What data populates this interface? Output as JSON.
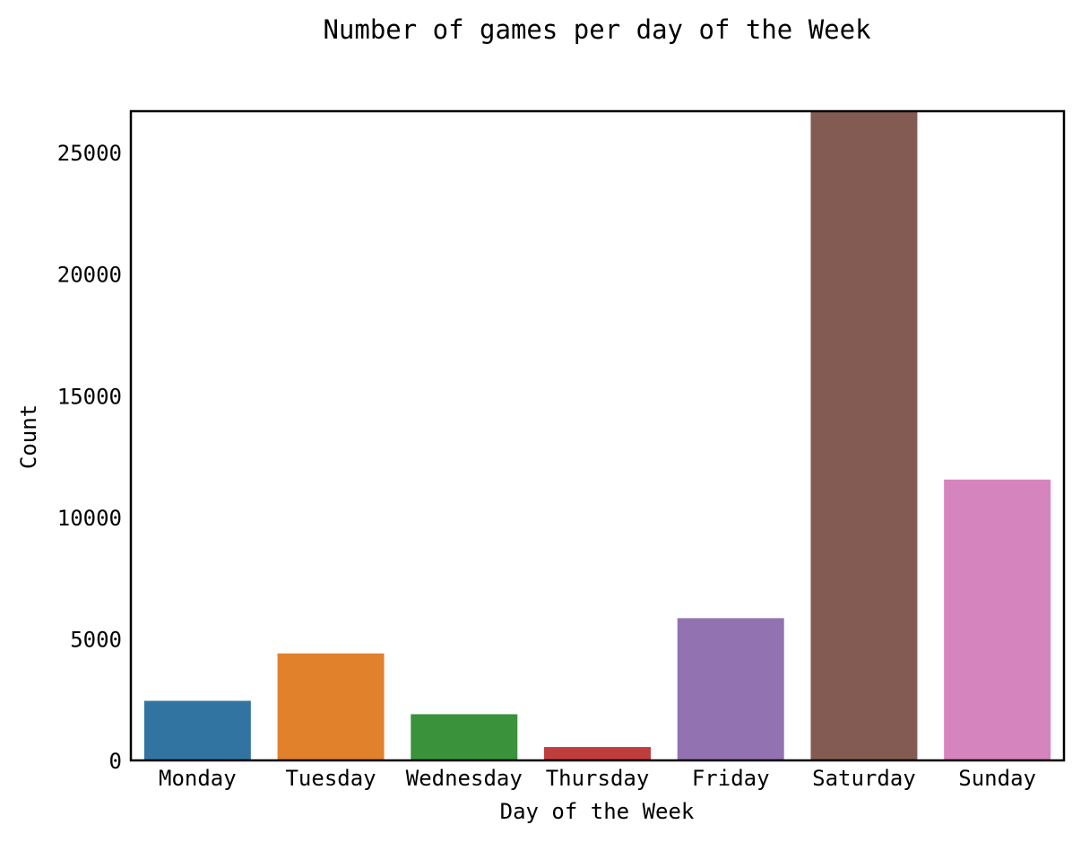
{
  "chart_data": {
    "type": "bar",
    "title": "Number of games per day of the Week",
    "xlabel": "Day of the Week",
    "ylabel": "Count",
    "categories": [
      "Monday",
      "Tuesday",
      "Wednesday",
      "Thursday",
      "Friday",
      "Saturday",
      "Sunday"
    ],
    "values": [
      2450,
      4400,
      1900,
      550,
      5850,
      26700,
      11550
    ],
    "colors": [
      "#3274a1",
      "#e1812c",
      "#3a923a",
      "#c03d3e",
      "#9372b2",
      "#845b53",
      "#d684bd"
    ],
    "ylim": [
      0,
      26700
    ],
    "yticks": [
      0,
      5000,
      10000,
      15000,
      20000,
      25000
    ],
    "grid": false,
    "legend": "none"
  }
}
